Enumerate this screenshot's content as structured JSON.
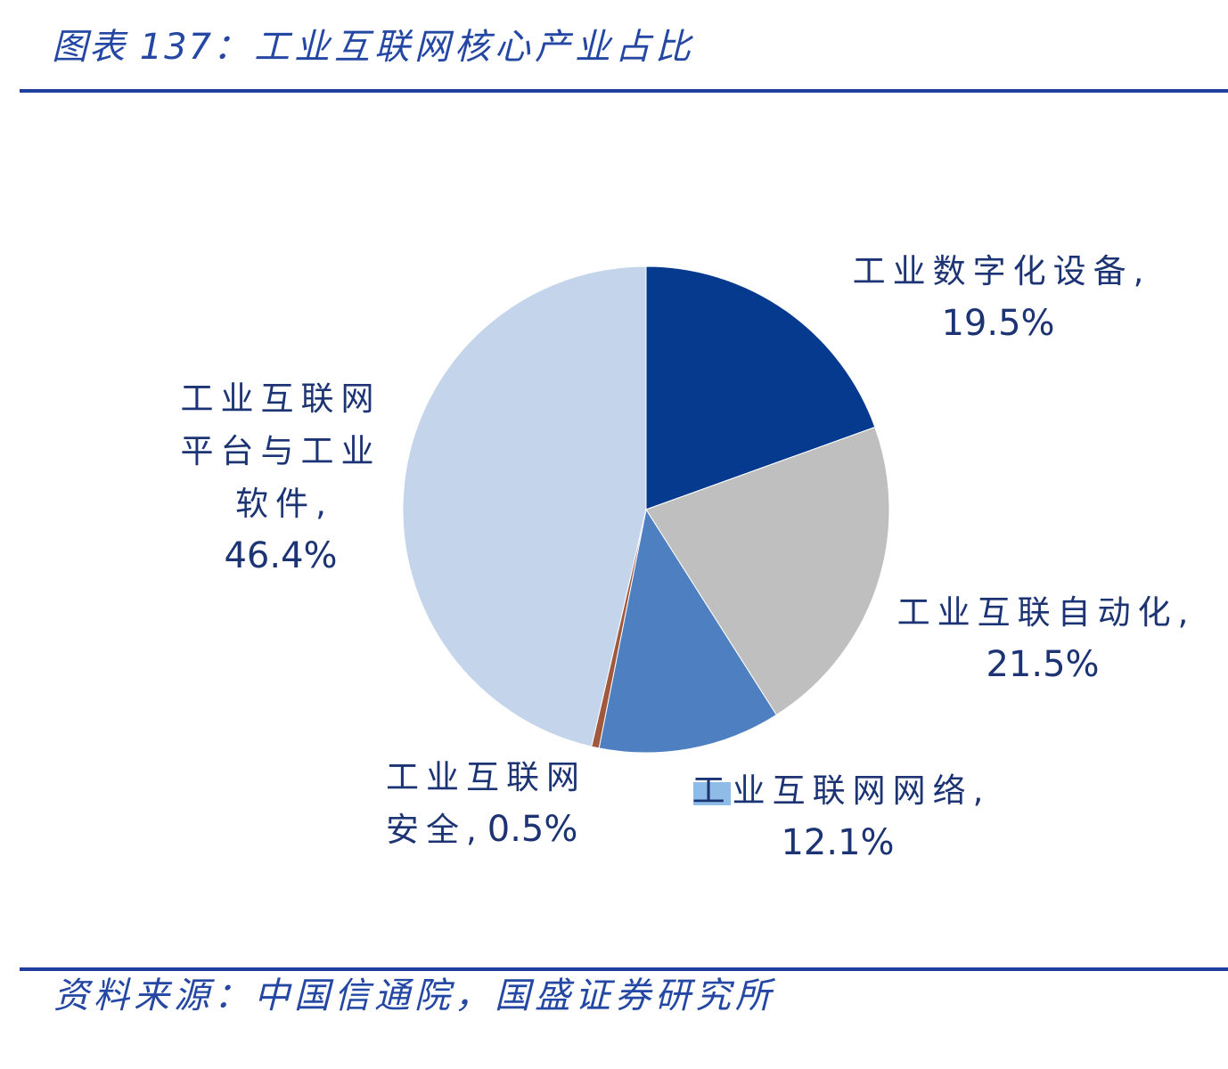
{
  "header": {
    "figure_label": "图表 137："
  },
  "chart_data": {
    "type": "pie",
    "title": "工业互联网核心产业占比",
    "categories": [
      "工业数字化设备",
      "工业互联自动化",
      "工业互联网网络",
      "工业互联网安全",
      "工业互联网平台与工业软件"
    ],
    "values": [
      19.5,
      21.5,
      12.1,
      0.5,
      46.4
    ],
    "value_labels": [
      "19.5%",
      "21.5%",
      "12.1%",
      "0.5%",
      "46.4%"
    ],
    "label_separator": ",",
    "colors": [
      "#063A8F",
      "#BFBFBF",
      "#4E80C1",
      "#A0593D",
      "#C4D5EB"
    ],
    "show_legend": false
  },
  "source": {
    "text": "资料来源：中国信通院，国盛证券研究所"
  },
  "styles": {
    "accent_color": "#1F3F9F",
    "heading_color": "#2447A3",
    "label_color": "#1D3474"
  }
}
